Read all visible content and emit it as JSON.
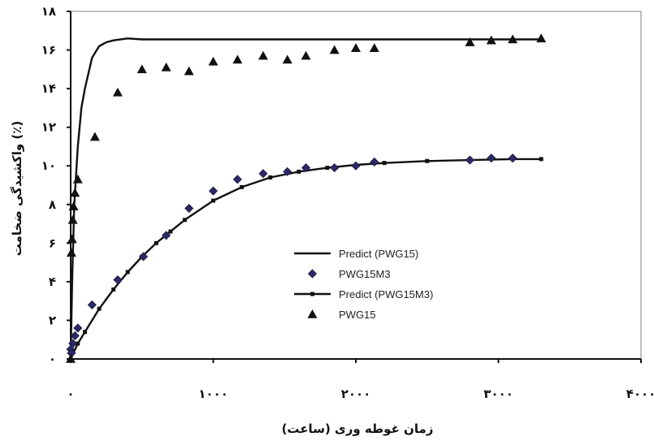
{
  "chart_data": {
    "type": "line",
    "title": "",
    "xlabel": "زمان غوطه وری (ساعت)",
    "ylabel": "واکشیدگی ضخامت (٪)",
    "xlim": [
      0,
      4000
    ],
    "ylim": [
      0,
      18
    ],
    "x_ticks": [
      {
        "value": 0,
        "label": "۰"
      },
      {
        "value": 1000,
        "label": "۱۰۰۰"
      },
      {
        "value": 2000,
        "label": "۲۰۰۰"
      },
      {
        "value": 3000,
        "label": "۳۰۰۰"
      },
      {
        "value": 4000,
        "label": "۴۰۰۰"
      }
    ],
    "y_ticks": [
      {
        "value": 0,
        "label": "۰"
      },
      {
        "value": 2,
        "label": "۲"
      },
      {
        "value": 4,
        "label": "۴"
      },
      {
        "value": 6,
        "label": "۶"
      },
      {
        "value": 8,
        "label": "۸"
      },
      {
        "value": 10,
        "label": "۱۰"
      },
      {
        "value": 12,
        "label": "۱۲"
      },
      {
        "value": 14,
        "label": "۱۴"
      },
      {
        "value": 16,
        "label": "۱۶"
      },
      {
        "value": 18,
        "label": "۱۸"
      }
    ],
    "grid": false,
    "legend_position": "center-right",
    "series": [
      {
        "name": "Predict (PWG15)",
        "style": "line",
        "color": "#111111",
        "x": [
          0,
          10,
          25,
          50,
          75,
          100,
          150,
          200,
          250,
          300,
          400,
          500,
          1000,
          2000,
          3000,
          3300
        ],
        "y": [
          0,
          4,
          8,
          11,
          13,
          14,
          15.6,
          16.2,
          16.4,
          16.5,
          16.6,
          16.55,
          16.55,
          16.55,
          16.55,
          16.55
        ]
      },
      {
        "name": "PWG15M3",
        "style": "diamond",
        "color": "#2a2a66",
        "x": [
          0,
          5,
          15,
          30,
          50,
          150,
          330,
          510,
          670,
          830,
          1000,
          1170,
          1350,
          1520,
          1650,
          1850,
          2000,
          2130,
          2800,
          2950,
          3100
        ],
        "y": [
          0.5,
          0.3,
          0.8,
          1.2,
          1.6,
          2.8,
          4.1,
          5.3,
          6.4,
          7.8,
          8.7,
          9.3,
          9.6,
          9.7,
          9.9,
          9.9,
          10.0,
          10.2,
          10.3,
          10.4,
          10.4
        ]
      },
      {
        "name": "Predict (PWG15M3)",
        "style": "line-square",
        "color": "#111111",
        "x": [
          0,
          50,
          100,
          200,
          300,
          400,
          500,
          600,
          700,
          800,
          1000,
          1200,
          1400,
          1600,
          1800,
          2000,
          2200,
          2500,
          2800,
          3100,
          3300
        ],
        "y": [
          0,
          0.8,
          1.4,
          2.6,
          3.6,
          4.5,
          5.3,
          6.0,
          6.6,
          7.2,
          8.2,
          8.9,
          9.4,
          9.7,
          9.9,
          10.05,
          10.15,
          10.25,
          10.3,
          10.35,
          10.35
        ]
      },
      {
        "name": "PWG15",
        "style": "triangle",
        "color": "#111111",
        "x": [
          0,
          5,
          10,
          15,
          20,
          30,
          50,
          170,
          330,
          500,
          670,
          830,
          1000,
          1170,
          1350,
          1520,
          1650,
          1850,
          2000,
          2130,
          2800,
          2950,
          3100,
          3300
        ],
        "y": [
          0,
          5.5,
          6.2,
          7.2,
          7.9,
          8.6,
          9.3,
          11.5,
          13.8,
          15.0,
          15.1,
          14.9,
          15.4,
          15.5,
          15.7,
          15.5,
          15.7,
          16.0,
          16.1,
          16.1,
          16.4,
          16.5,
          16.55,
          16.6
        ]
      }
    ],
    "legend_order": [
      0,
      1,
      2,
      3
    ]
  }
}
